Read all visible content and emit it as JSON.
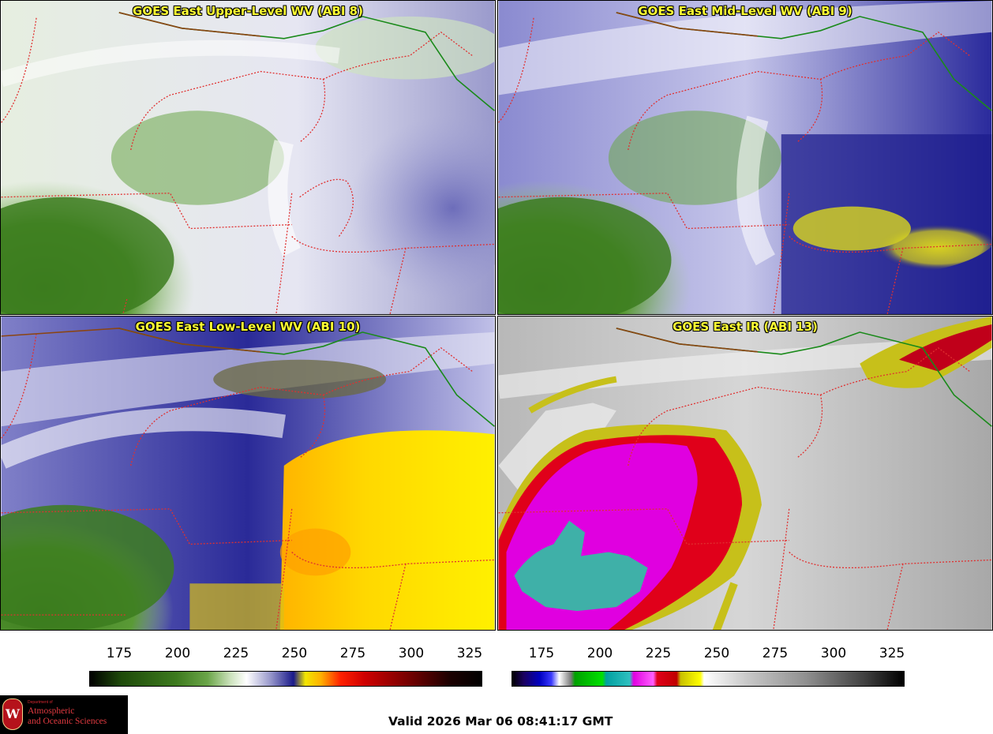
{
  "panels": {
    "upper": {
      "title": "GOES East Upper-Level WV (ABI 8)"
    },
    "mid": {
      "title": "GOES East Mid-Level WV (ABI 9)"
    },
    "low": {
      "title": "GOES East Low-Level WV (ABI 10)"
    },
    "ir": {
      "title": "GOES East IR (ABI 13)"
    }
  },
  "wv_colorbar": {
    "ticks": [
      "175",
      "200",
      "225",
      "250",
      "275",
      "300",
      "325"
    ]
  },
  "ir_colorbar": {
    "ticks": [
      "175",
      "200",
      "225",
      "250",
      "275",
      "300",
      "325"
    ]
  },
  "logo": {
    "dept": "Department of",
    "line1": "Atmospheric",
    "line2": "and Oceanic Sciences",
    "seal": "W"
  },
  "valid_time": "Valid 2026 Mar 06 08:41:17 GMT",
  "colors": {
    "wv_green": "#3d7a1e",
    "wv_blue": "#1a1a8a",
    "wv_yellow": "#f2e600",
    "ir_magenta": "#e000e0",
    "ir_red": "#e0001a",
    "ir_teal": "#3fb0a8"
  }
}
